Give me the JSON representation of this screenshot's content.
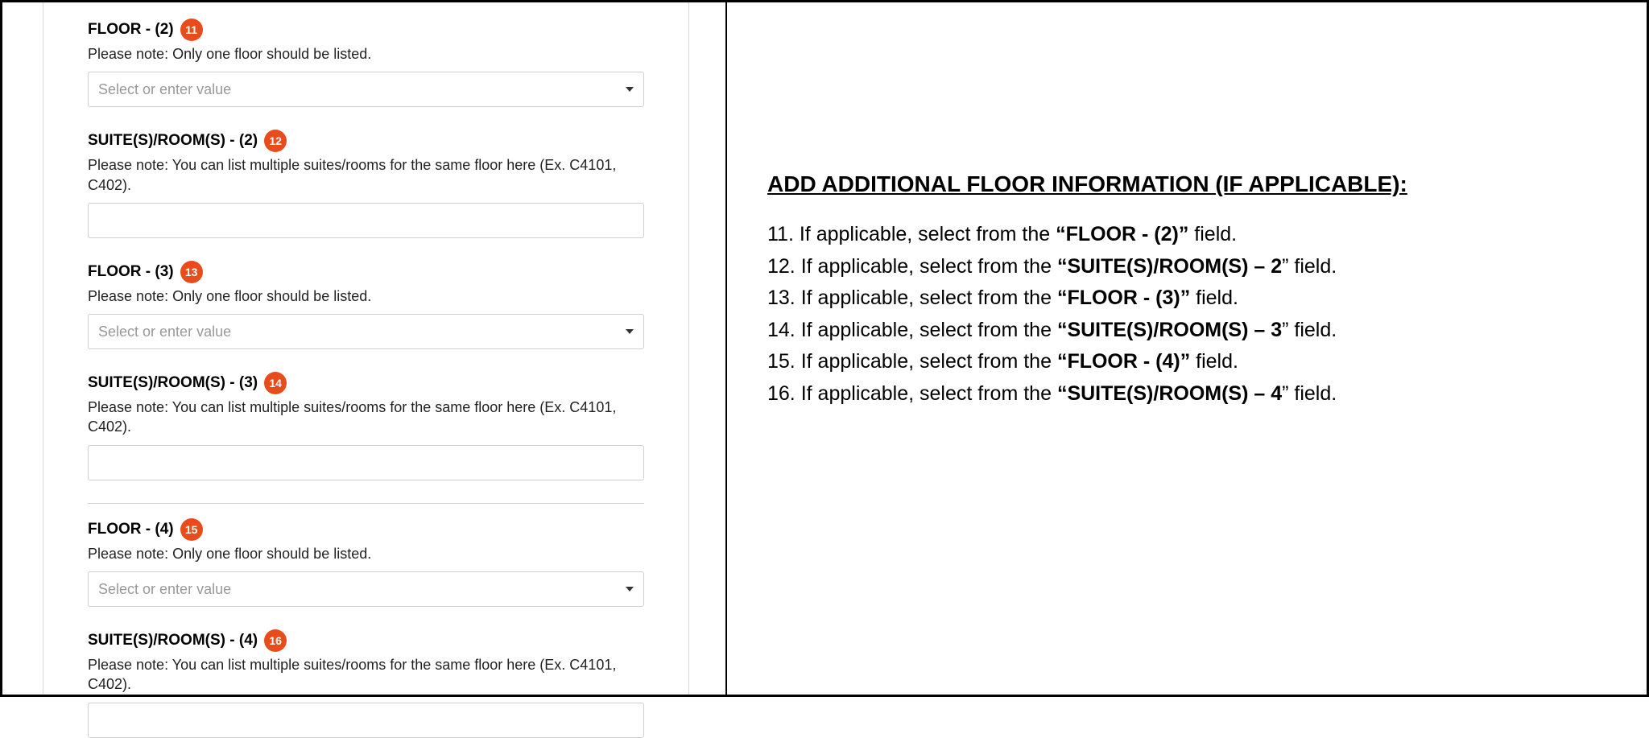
{
  "form": {
    "groups": [
      {
        "id": "floor-2",
        "label": "FLOOR - (2)",
        "badge": "11",
        "helper": "Please note: Only one floor should be listed.",
        "type": "select",
        "placeholder": "Select or enter value",
        "divider_before": false
      },
      {
        "id": "suites-2",
        "label": "SUITE(S)/ROOM(S) - (2)",
        "badge": "12",
        "helper": "Please note: You can list multiple suites/rooms for the same floor here (Ex. C4101, C402).",
        "type": "text",
        "placeholder": "",
        "divider_before": false
      },
      {
        "id": "floor-3",
        "label": "FLOOR - (3)",
        "badge": "13",
        "helper": "Please note: Only one floor should be listed.",
        "type": "select",
        "placeholder": "Select or enter value",
        "divider_before": false
      },
      {
        "id": "suites-3",
        "label": "SUITE(S)/ROOM(S) - (3)",
        "badge": "14",
        "helper": "Please note: You can list multiple suites/rooms for the same floor here (Ex. C4101, C402).",
        "type": "text",
        "placeholder": "",
        "divider_before": false
      },
      {
        "id": "floor-4",
        "label": "FLOOR - (4)",
        "badge": "15",
        "helper": "Please note: Only one floor should be listed.",
        "type": "select",
        "placeholder": "Select or enter value",
        "divider_before": true
      },
      {
        "id": "suites-4",
        "label": "SUITE(S)/ROOM(S) - (4)",
        "badge": "16",
        "helper": "Please note: You can list multiple suites/rooms for the same floor here (Ex. C4101, C402).",
        "type": "text",
        "placeholder": "",
        "divider_before": false
      }
    ]
  },
  "instructions": {
    "heading": "ADD ADDITIONAL FLOOR INFORMATION (IF APPLICABLE):",
    "items": [
      {
        "num": "11.",
        "prefix": "If applicable, select from the ",
        "bold": "“FLOOR - (2)”",
        "suffix": " field."
      },
      {
        "num": "12.",
        "prefix": "If applicable, select from the ",
        "bold": "“SUITE(S)/ROOM(S) – 2",
        "suffix": "” field."
      },
      {
        "num": "13.",
        "prefix": "If applicable, select from the ",
        "bold": "“FLOOR - (3)”",
        "suffix": " field."
      },
      {
        "num": "14.",
        "prefix": "If applicable, select from the ",
        "bold": "“SUITE(S)/ROOM(S) – 3",
        "suffix": "” field."
      },
      {
        "num": "15.",
        "prefix": "If applicable, select from the ",
        "bold": "“FLOOR - (4)”",
        "suffix": " field."
      },
      {
        "num": "16.",
        "prefix": "If applicable, select from the ",
        "bold": "“SUITE(S)/ROOM(S) – 4",
        "suffix": "” field."
      }
    ]
  },
  "styling": {
    "badge_bg": "#e84c1a",
    "badge_text": "#ffffff",
    "border_color": "#000000",
    "input_border": "#cfcfcf",
    "placeholder_color": "#999999",
    "divider_color": "#d4d4d4",
    "label_fontsize": 19,
    "helper_fontsize": 18,
    "heading_fontsize": 28,
    "instruction_fontsize": 25
  }
}
